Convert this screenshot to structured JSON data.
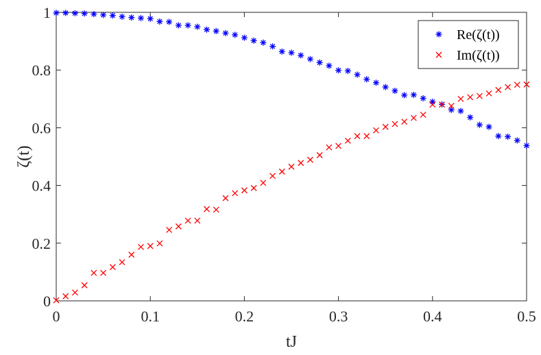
{
  "chart_data": {
    "type": "scatter",
    "xlabel": "tJ",
    "ylabel": "ζ(t)",
    "xlim": [
      0,
      0.5
    ],
    "ylim": [
      0,
      1
    ],
    "xticks": [
      0,
      0.1,
      0.2,
      0.3,
      0.4,
      0.5
    ],
    "xtick_labels": [
      "0",
      "0.1",
      "0.2",
      "0.3",
      "0.4",
      "0.5"
    ],
    "yticks": [
      0,
      0.2,
      0.4,
      0.6,
      0.8,
      1
    ],
    "ytick_labels": [
      "0",
      "0.2",
      "0.4",
      "0.6",
      "0.8",
      "1"
    ],
    "grid": false,
    "legend_position": "top-right",
    "x": [
      0,
      0.01,
      0.02,
      0.03,
      0.04,
      0.05,
      0.06,
      0.07,
      0.08,
      0.09,
      0.1,
      0.11,
      0.12,
      0.13,
      0.14,
      0.15,
      0.16,
      0.17,
      0.18,
      0.19,
      0.2,
      0.21,
      0.22,
      0.23,
      0.24,
      0.25,
      0.26,
      0.27,
      0.28,
      0.29,
      0.3,
      0.31,
      0.32,
      0.33,
      0.34,
      0.35,
      0.36,
      0.37,
      0.38,
      0.39,
      0.4,
      0.41,
      0.42,
      0.43,
      0.44,
      0.45,
      0.46,
      0.47,
      0.48,
      0.49,
      0.5
    ],
    "series": [
      {
        "name": "Re(ζ(t))",
        "marker": "asterisk",
        "color": "#0000ff",
        "values": [
          0.998,
          0.998,
          0.997,
          0.996,
          0.994,
          0.991,
          0.989,
          0.985,
          0.982,
          0.98,
          0.978,
          0.968,
          0.967,
          0.955,
          0.955,
          0.95,
          0.94,
          0.935,
          0.928,
          0.922,
          0.912,
          0.902,
          0.895,
          0.882,
          0.864,
          0.86,
          0.851,
          0.838,
          0.826,
          0.815,
          0.799,
          0.797,
          0.784,
          0.768,
          0.756,
          0.741,
          0.728,
          0.713,
          0.714,
          0.702,
          0.69,
          0.681,
          0.662,
          0.658,
          0.636,
          0.61,
          0.603,
          0.571,
          0.569,
          0.556,
          0.538
        ]
      },
      {
        "name": "Im(ζ(t))",
        "marker": "x",
        "color": "#ff0000",
        "values": [
          0.002,
          0.016,
          0.029,
          0.054,
          0.097,
          0.097,
          0.117,
          0.134,
          0.16,
          0.187,
          0.19,
          0.199,
          0.246,
          0.258,
          0.278,
          0.278,
          0.318,
          0.316,
          0.356,
          0.373,
          0.383,
          0.391,
          0.409,
          0.433,
          0.448,
          0.465,
          0.478,
          0.489,
          0.505,
          0.532,
          0.537,
          0.555,
          0.571,
          0.571,
          0.591,
          0.603,
          0.613,
          0.621,
          0.634,
          0.645,
          0.68,
          0.68,
          0.676,
          0.7,
          0.706,
          0.71,
          0.719,
          0.731,
          0.741,
          0.749,
          0.75
        ]
      }
    ]
  }
}
